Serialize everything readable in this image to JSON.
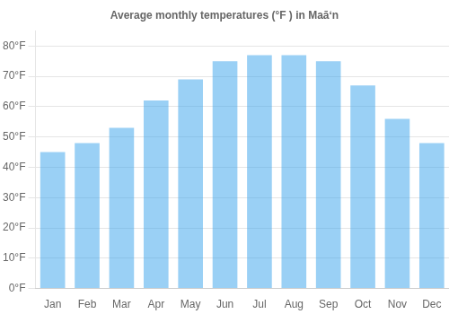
{
  "chart_data": {
    "type": "bar",
    "title": "Average monthly temperatures (°F ) in Maāʻn",
    "categories": [
      "Jan",
      "Feb",
      "Mar",
      "Apr",
      "May",
      "Jun",
      "Jul",
      "Aug",
      "Sep",
      "Oct",
      "Nov",
      "Dec"
    ],
    "values": [
      45,
      48,
      53,
      62,
      69,
      75,
      77,
      77,
      75,
      67,
      56,
      48
    ],
    "ylim": [
      0,
      85
    ],
    "yticks": [
      {
        "value": 0,
        "label": "0°F"
      },
      {
        "value": 10,
        "label": "10°F"
      },
      {
        "value": 20,
        "label": "20°F"
      },
      {
        "value": 30,
        "label": "30°F"
      },
      {
        "value": 40,
        "label": "40°F"
      },
      {
        "value": 50,
        "label": "50°F"
      },
      {
        "value": 60,
        "label": "60°F"
      },
      {
        "value": 70,
        "label": "70°F"
      },
      {
        "value": 80,
        "label": "80°F"
      }
    ],
    "grid": true
  }
}
